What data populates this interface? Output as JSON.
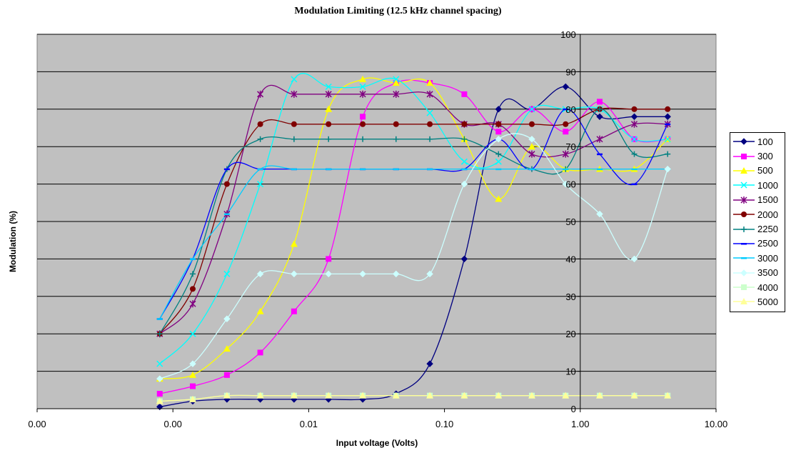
{
  "chart_data": {
    "type": "line",
    "title": "Modulation Limiting (12.5 kHz channel spacing)",
    "xlabel": "Input voltage (Volts)",
    "ylabel": "Modulation (%)",
    "x_scale": "log",
    "xlim": [
      0.0001,
      10
    ],
    "ylim": [
      0,
      100
    ],
    "x_ticks": [
      {
        "value": 0.0001,
        "label": "0.00"
      },
      {
        "value": 0.001,
        "label": "0.00"
      },
      {
        "value": 0.01,
        "label": "0.01"
      },
      {
        "value": 0.1,
        "label": "0.10"
      },
      {
        "value": 1,
        "label": "1.00"
      },
      {
        "value": 10,
        "label": "10.00"
      }
    ],
    "y_ticks": [
      0,
      10,
      20,
      30,
      40,
      50,
      60,
      70,
      80,
      90,
      100
    ],
    "grid": "horizontal",
    "plot_background": "#c0c0c0",
    "legend_position": "right",
    "x": [
      0.0008,
      0.0014,
      0.0025,
      0.0044,
      0.0078,
      0.014,
      0.025,
      0.044,
      0.078,
      0.14,
      0.25,
      0.44,
      0.78,
      1.39,
      2.5,
      4.4
    ],
    "series": [
      {
        "name": "100",
        "color": "#000080",
        "marker": "diamond",
        "values": [
          0.5,
          2,
          2.5,
          2.5,
          2.5,
          2.5,
          2.5,
          4,
          12,
          40,
          80,
          80,
          86,
          78,
          78,
          78
        ]
      },
      {
        "name": "300",
        "color": "#ff00ff",
        "marker": "square",
        "values": [
          4,
          6,
          9,
          15,
          26,
          40,
          78,
          87,
          87,
          84,
          74,
          80,
          74,
          82,
          72,
          72
        ]
      },
      {
        "name": "500",
        "color": "#ffff00",
        "marker": "triangle",
        "values": [
          8,
          9,
          16,
          26,
          44,
          80,
          88,
          87,
          87,
          72,
          56,
          70,
          64,
          64,
          64,
          72
        ]
      },
      {
        "name": "1000",
        "color": "#00ffff",
        "marker": "x",
        "values": [
          12,
          20,
          36,
          60,
          88,
          86,
          86,
          88,
          79,
          66,
          66,
          80,
          80,
          80,
          72,
          72
        ]
      },
      {
        "name": "1500",
        "color": "#800080",
        "marker": "star",
        "values": [
          20,
          28,
          52,
          84,
          84,
          84,
          84,
          84,
          84,
          76,
          76,
          68,
          68,
          72,
          76,
          76
        ]
      },
      {
        "name": "2000",
        "color": "#800000",
        "marker": "circle",
        "values": [
          20,
          32,
          60,
          76,
          76,
          76,
          76,
          76,
          76,
          76,
          76,
          76,
          76,
          80,
          80,
          80
        ]
      },
      {
        "name": "2250",
        "color": "#008080",
        "marker": "plus",
        "values": [
          20,
          36,
          64,
          72,
          72,
          72,
          72,
          72,
          72,
          72,
          68,
          64,
          64,
          80,
          68,
          68
        ]
      },
      {
        "name": "2500",
        "color": "#0000ff",
        "marker": "dash",
        "values": [
          24,
          40,
          64,
          64,
          64,
          64,
          64,
          64,
          64,
          64,
          72,
          64,
          80,
          68,
          60,
          76
        ]
      },
      {
        "name": "3000",
        "color": "#00ccff",
        "marker": "dash",
        "values": [
          24,
          40,
          52,
          64,
          64,
          64,
          64,
          64,
          64,
          64,
          64,
          64,
          64,
          64,
          64,
          64
        ]
      },
      {
        "name": "3500",
        "color": "#ccffff",
        "marker": "diamond",
        "values": [
          8,
          12,
          24,
          36,
          36,
          36,
          36,
          36,
          36,
          60,
          72,
          72,
          60,
          52,
          40,
          64
        ]
      },
      {
        "name": "4000",
        "color": "#ccffcc",
        "marker": "square",
        "values": [
          2,
          2.5,
          3.5,
          3.5,
          3.5,
          3.5,
          3.5,
          3.5,
          3.5,
          3.5,
          3.5,
          3.5,
          3.5,
          3.5,
          3.5,
          3.5
        ]
      },
      {
        "name": "5000",
        "color": "#ffff99",
        "marker": "triangle",
        "values": [
          2,
          2.5,
          3.5,
          3.5,
          3.5,
          3.5,
          3.5,
          3.5,
          3.5,
          3.5,
          3.5,
          3.5,
          3.5,
          3.5,
          3.5,
          3.5
        ]
      }
    ]
  }
}
